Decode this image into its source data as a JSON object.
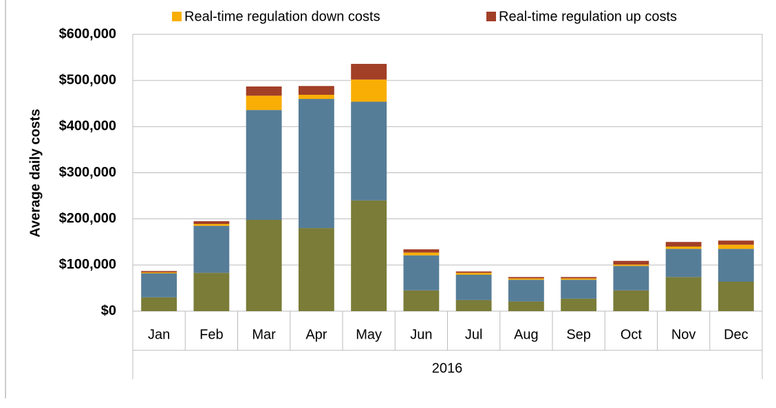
{
  "chart_data": {
    "type": "stacked-bar",
    "ylabel": "Average daily costs",
    "xlabel": "2016",
    "categories": [
      "Jan",
      "Feb",
      "Mar",
      "Apr",
      "May",
      "Jun",
      "Jul",
      "Aug",
      "Sep",
      "Oct",
      "Nov",
      "Dec"
    ],
    "series": [
      {
        "color": "#7a7c38",
        "values": [
          30000,
          83000,
          198000,
          180000,
          240000,
          45000,
          24000,
          21000,
          27000,
          45000,
          74000,
          64000
        ]
      },
      {
        "color": "#567d98",
        "values": [
          52000,
          102000,
          238000,
          280000,
          214000,
          76000,
          55000,
          47000,
          41000,
          53000,
          61000,
          71000
        ]
      },
      {
        "name": "Real-time regulation down costs",
        "color": "#f9ae06",
        "values": [
          2000,
          4000,
          31000,
          9000,
          48000,
          6000,
          4000,
          3000,
          3000,
          3000,
          5000,
          9000
        ]
      },
      {
        "name": "Real-time regulation up costs",
        "color": "#a23f27",
        "values": [
          3000,
          6000,
          20000,
          19000,
          34000,
          7000,
          3000,
          3000,
          3000,
          8000,
          10000,
          9000
        ]
      }
    ],
    "ylim": [
      0,
      600000
    ],
    "yticks": [
      {
        "value": 0,
        "label": "$0"
      },
      {
        "value": 100000,
        "label": "$100,000"
      },
      {
        "value": 200000,
        "label": "$200,000"
      },
      {
        "value": 300000,
        "label": "$300,000"
      },
      {
        "value": 400000,
        "label": "$400,000"
      },
      {
        "value": 500000,
        "label": "$500,000"
      },
      {
        "value": 600000,
        "label": "$600,000"
      }
    ],
    "grid": true,
    "legend": "top"
  }
}
